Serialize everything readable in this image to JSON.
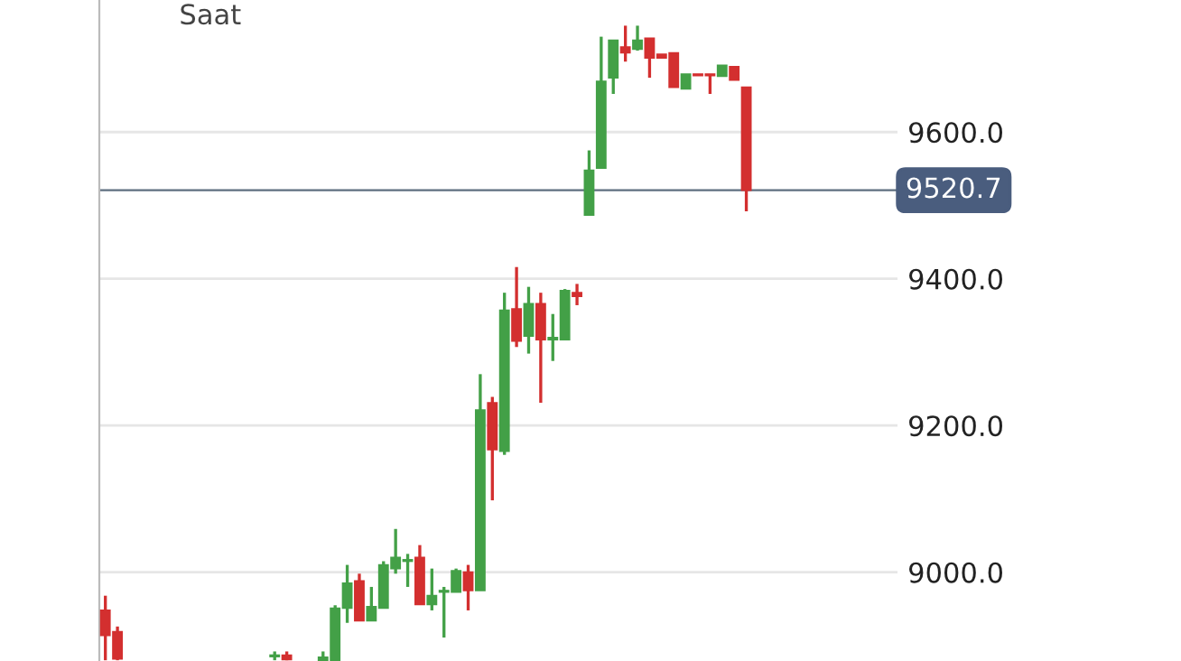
{
  "chart_data": {
    "type": "candlestick",
    "annotations": [
      "Saat"
    ],
    "categories": [
      null,
      null,
      null,
      null,
      null,
      null,
      null,
      null,
      null,
      null,
      null,
      null,
      null,
      null,
      null,
      null,
      null,
      null,
      null,
      null,
      null,
      null,
      null,
      null,
      null,
      null,
      null,
      null,
      null,
      null,
      null,
      null,
      null,
      null,
      null,
      null,
      null,
      null,
      null,
      null,
      null,
      null,
      null,
      null,
      null,
      null,
      null,
      null,
      null,
      null,
      null,
      null,
      null,
      null,
      null,
      null,
      null,
      null,
      null,
      null,
      null,
      null,
      null,
      null,
      null,
      null
    ],
    "ohlc": [
      [
        8948,
        8968,
        8880,
        8914
      ],
      [
        8919,
        8926,
        8880,
        8882
      ],
      null,
      null,
      null,
      null,
      null,
      null,
      null,
      null,
      null,
      null,
      null,
      null,
      [
        8885,
        8892,
        8880,
        8887
      ],
      [
        8887,
        8892,
        8880,
        8881
      ],
      null,
      null,
      [
        8880,
        8892,
        8880,
        8884
      ],
      [
        8880,
        8955,
        8880,
        8951
      ],
      [
        8951,
        9010,
        8931,
        8985
      ],
      [
        8988,
        8998,
        8934,
        8934
      ],
      [
        8934,
        8980,
        8934,
        8953
      ],
      [
        8951,
        9015,
        8951,
        9010
      ],
      [
        9005,
        9059,
        8998,
        9020
      ],
      [
        9015,
        9025,
        8980,
        9017
      ],
      [
        9020,
        9037,
        8956,
        8956
      ],
      [
        8956,
        9005,
        8948,
        8968
      ],
      [
        8973,
        8980,
        8911,
        8975
      ],
      [
        8973,
        9005,
        8973,
        9002
      ],
      [
        9000,
        9010,
        8948,
        8975
      ],
      [
        8975,
        9270,
        8975,
        9221
      ],
      [
        9231,
        9239,
        9098,
        9167
      ],
      [
        9165,
        9381,
        9160,
        9357
      ],
      [
        9359,
        9416,
        9307,
        9315
      ],
      [
        9322,
        9389,
        9298,
        9366
      ],
      [
        9366,
        9381,
        9231,
        9317
      ],
      [
        9317,
        9352,
        9288,
        9320
      ],
      [
        9317,
        9386,
        9317,
        9384
      ],
      [
        9381,
        9393,
        9364,
        9376
      ],
      [
        9487,
        9575,
        9487,
        9548
      ],
      [
        9551,
        9730,
        9551,
        9669
      ],
      [
        9674,
        9725,
        9652,
        9725
      ],
      [
        9716,
        9745,
        9696,
        9708
      ],
      [
        9713,
        9745,
        9711,
        9725
      ],
      [
        9728,
        9728,
        9674,
        9701
      ],
      [
        9706,
        9706,
        9701,
        9701
      ],
      [
        9708,
        9708,
        9661,
        9661
      ],
      [
        9659,
        9679,
        9659,
        9679
      ],
      [
        9679,
        9679,
        9677,
        9677
      ],
      [
        9679,
        9679,
        9652,
        9677
      ],
      [
        9676,
        9691,
        9676,
        9691
      ],
      [
        9689,
        9689,
        9671,
        9671
      ],
      [
        9661,
        9661,
        9492,
        9520.7
      ],
      null,
      null,
      null,
      null,
      null,
      null,
      null,
      null,
      null,
      null,
      null,
      null
    ],
    "colors": [
      "#d32f2f",
      "#d32f2f",
      null,
      null,
      null,
      null,
      null,
      null,
      null,
      null,
      null,
      null,
      null,
      null,
      "#43a047",
      "#d32f2f",
      null,
      null,
      "#43a047",
      "#43a047",
      "#43a047",
      "#d32f2f",
      "#43a047",
      "#43a047",
      "#43a047",
      "#43a047",
      "#d32f2f",
      "#43a047",
      "#43a047",
      "#43a047",
      "#d32f2f",
      "#43a047",
      "#d32f2f",
      "#43a047",
      "#d32f2f",
      "#43a047",
      "#d32f2f",
      "#43a047",
      "#43a047",
      "#d32f2f",
      "#43a047",
      "#43a047",
      "#43a047",
      "#d32f2f",
      "#43a047",
      "#d32f2f",
      "#d32f2f",
      "#d32f2f",
      "#43a047",
      "#d32f2f",
      "#d32f2f",
      "#43a047",
      "#d32f2f",
      "#d32f2f",
      null,
      null,
      null,
      null,
      null,
      null,
      null,
      null,
      null,
      null,
      null,
      null
    ],
    "ylim": [
      8879,
      9780
    ],
    "yticks": [
      {
        "value": 9000,
        "label": "9000.0"
      },
      {
        "value": 9200,
        "label": "9200.0"
      },
      {
        "value": 9400,
        "label": "9400.0"
      },
      {
        "value": 9600,
        "label": "9600.0"
      }
    ],
    "ref_lines": [
      {
        "axis": "y",
        "value": 9520.7,
        "label": "9520.7",
        "color": "#5f6f80"
      }
    ],
    "grid": "y",
    "legend": false
  }
}
